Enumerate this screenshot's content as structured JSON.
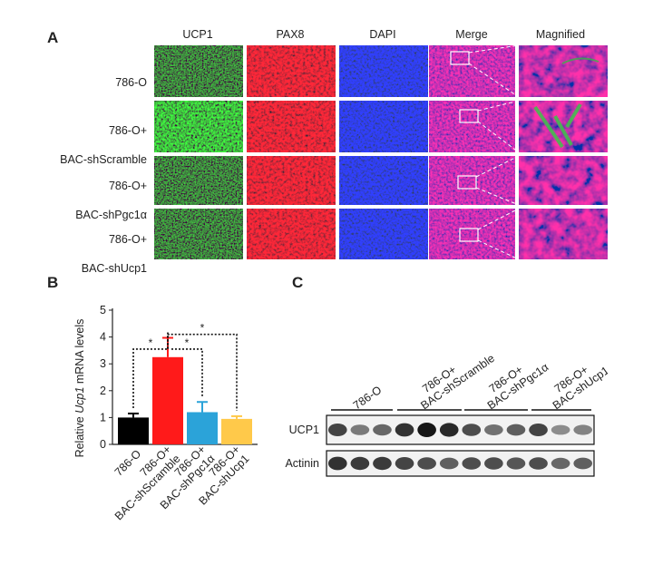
{
  "panel_a": {
    "letter": "A",
    "columns": [
      "UCP1",
      "PAX8",
      "DAPI",
      "Merge",
      "Magnified"
    ],
    "rows": [
      {
        "line1": "786-O",
        "line2": ""
      },
      {
        "line1": "786-O+",
        "line2": "BAC-shScramble"
      },
      {
        "line1": "786-O+",
        "line2": "BAC-shPgc1α"
      },
      {
        "line1": "786-O+",
        "line2": "BAC-shUcp1"
      }
    ],
    "channel_colors": {
      "ucp1": "#2fa82f",
      "pax8": "#d61b1b",
      "dapi": "#1c2fd4"
    }
  },
  "panel_b": {
    "letter": "B"
  },
  "panel_c": {
    "letter": "C",
    "lane_groups": [
      {
        "line1": "786-O",
        "line2": ""
      },
      {
        "line1": "786-O+",
        "line2": "BAC-shScramble"
      },
      {
        "line1": "786-O+",
        "line2": "BAC-shPgc1α"
      },
      {
        "line1": "786-O+",
        "line2": "BAC-shUcp1"
      }
    ],
    "blots": [
      {
        "label": "UCP1",
        "intensities": [
          0.75,
          0.45,
          0.55,
          0.85,
          1.0,
          0.9,
          0.7,
          0.5,
          0.6,
          0.75,
          0.35,
          0.4
        ]
      },
      {
        "label": "Actinin",
        "intensities": [
          0.85,
          0.8,
          0.8,
          0.75,
          0.7,
          0.6,
          0.7,
          0.7,
          0.65,
          0.7,
          0.55,
          0.6
        ]
      }
    ]
  },
  "chart_data": {
    "type": "bar",
    "categories": [
      "786-O",
      "786-O+ BAC-shScramble",
      "786-O+ BAC-shPgc1α",
      "786-O+ BAC-shUcp1"
    ],
    "category_lines": [
      [
        "786-O",
        ""
      ],
      [
        "786-O+",
        "BAC-shScramble"
      ],
      [
        "786-O+",
        "BAC-shPgc1α"
      ],
      [
        "786-O+",
        "BAC-shUcp1"
      ]
    ],
    "values": [
      1.0,
      3.25,
      1.2,
      0.95
    ],
    "errors": [
      0.15,
      0.72,
      0.38,
      0.1
    ],
    "colors": [
      "#000000",
      "#ff1a1a",
      "#2ba3d9",
      "#ffc94a"
    ],
    "ylabel_pre": "Relative ",
    "ylabel_italic": "Ucp1",
    "ylabel_post": " mRNA levels",
    "ylim": [
      0,
      5
    ],
    "yticks": [
      "0",
      "1",
      "2",
      "3",
      "4",
      "5"
    ],
    "significance": [
      {
        "from": 0,
        "to": 1,
        "label": "*"
      },
      {
        "from": 1,
        "to": 2,
        "label": "*"
      },
      {
        "from": 1,
        "to": 3,
        "label": "*"
      }
    ]
  }
}
